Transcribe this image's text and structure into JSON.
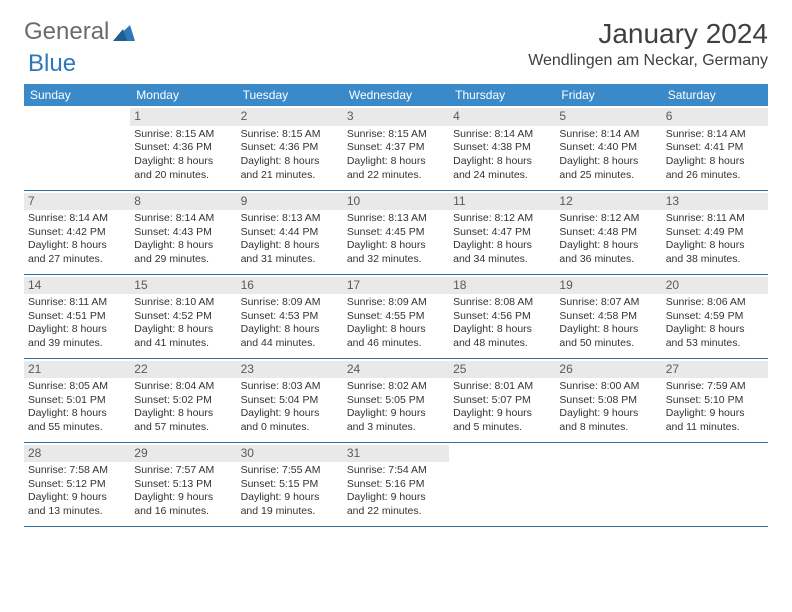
{
  "logo": {
    "word1": "General",
    "word2": "Blue"
  },
  "title": "January 2024",
  "location": "Wendlingen am Neckar, Germany",
  "colors": {
    "header_bg": "#3a89c9",
    "header_text": "#ffffff",
    "daynum_bg": "#e9e9e9",
    "rule": "#2f6fa3",
    "logo_grey": "#6b6b6b",
    "logo_blue": "#2f78b7"
  },
  "weekdays": [
    "Sunday",
    "Monday",
    "Tuesday",
    "Wednesday",
    "Thursday",
    "Friday",
    "Saturday"
  ],
  "weeks": [
    [
      {
        "n": "",
        "sunrise": "",
        "sunset": "",
        "daylight": ""
      },
      {
        "n": "1",
        "sunrise": "Sunrise: 8:15 AM",
        "sunset": "Sunset: 4:36 PM",
        "daylight": "Daylight: 8 hours and 20 minutes."
      },
      {
        "n": "2",
        "sunrise": "Sunrise: 8:15 AM",
        "sunset": "Sunset: 4:36 PM",
        "daylight": "Daylight: 8 hours and 21 minutes."
      },
      {
        "n": "3",
        "sunrise": "Sunrise: 8:15 AM",
        "sunset": "Sunset: 4:37 PM",
        "daylight": "Daylight: 8 hours and 22 minutes."
      },
      {
        "n": "4",
        "sunrise": "Sunrise: 8:14 AM",
        "sunset": "Sunset: 4:38 PM",
        "daylight": "Daylight: 8 hours and 24 minutes."
      },
      {
        "n": "5",
        "sunrise": "Sunrise: 8:14 AM",
        "sunset": "Sunset: 4:40 PM",
        "daylight": "Daylight: 8 hours and 25 minutes."
      },
      {
        "n": "6",
        "sunrise": "Sunrise: 8:14 AM",
        "sunset": "Sunset: 4:41 PM",
        "daylight": "Daylight: 8 hours and 26 minutes."
      }
    ],
    [
      {
        "n": "7",
        "sunrise": "Sunrise: 8:14 AM",
        "sunset": "Sunset: 4:42 PM",
        "daylight": "Daylight: 8 hours and 27 minutes."
      },
      {
        "n": "8",
        "sunrise": "Sunrise: 8:14 AM",
        "sunset": "Sunset: 4:43 PM",
        "daylight": "Daylight: 8 hours and 29 minutes."
      },
      {
        "n": "9",
        "sunrise": "Sunrise: 8:13 AM",
        "sunset": "Sunset: 4:44 PM",
        "daylight": "Daylight: 8 hours and 31 minutes."
      },
      {
        "n": "10",
        "sunrise": "Sunrise: 8:13 AM",
        "sunset": "Sunset: 4:45 PM",
        "daylight": "Daylight: 8 hours and 32 minutes."
      },
      {
        "n": "11",
        "sunrise": "Sunrise: 8:12 AM",
        "sunset": "Sunset: 4:47 PM",
        "daylight": "Daylight: 8 hours and 34 minutes."
      },
      {
        "n": "12",
        "sunrise": "Sunrise: 8:12 AM",
        "sunset": "Sunset: 4:48 PM",
        "daylight": "Daylight: 8 hours and 36 minutes."
      },
      {
        "n": "13",
        "sunrise": "Sunrise: 8:11 AM",
        "sunset": "Sunset: 4:49 PM",
        "daylight": "Daylight: 8 hours and 38 minutes."
      }
    ],
    [
      {
        "n": "14",
        "sunrise": "Sunrise: 8:11 AM",
        "sunset": "Sunset: 4:51 PM",
        "daylight": "Daylight: 8 hours and 39 minutes."
      },
      {
        "n": "15",
        "sunrise": "Sunrise: 8:10 AM",
        "sunset": "Sunset: 4:52 PM",
        "daylight": "Daylight: 8 hours and 41 minutes."
      },
      {
        "n": "16",
        "sunrise": "Sunrise: 8:09 AM",
        "sunset": "Sunset: 4:53 PM",
        "daylight": "Daylight: 8 hours and 44 minutes."
      },
      {
        "n": "17",
        "sunrise": "Sunrise: 8:09 AM",
        "sunset": "Sunset: 4:55 PM",
        "daylight": "Daylight: 8 hours and 46 minutes."
      },
      {
        "n": "18",
        "sunrise": "Sunrise: 8:08 AM",
        "sunset": "Sunset: 4:56 PM",
        "daylight": "Daylight: 8 hours and 48 minutes."
      },
      {
        "n": "19",
        "sunrise": "Sunrise: 8:07 AM",
        "sunset": "Sunset: 4:58 PM",
        "daylight": "Daylight: 8 hours and 50 minutes."
      },
      {
        "n": "20",
        "sunrise": "Sunrise: 8:06 AM",
        "sunset": "Sunset: 4:59 PM",
        "daylight": "Daylight: 8 hours and 53 minutes."
      }
    ],
    [
      {
        "n": "21",
        "sunrise": "Sunrise: 8:05 AM",
        "sunset": "Sunset: 5:01 PM",
        "daylight": "Daylight: 8 hours and 55 minutes."
      },
      {
        "n": "22",
        "sunrise": "Sunrise: 8:04 AM",
        "sunset": "Sunset: 5:02 PM",
        "daylight": "Daylight: 8 hours and 57 minutes."
      },
      {
        "n": "23",
        "sunrise": "Sunrise: 8:03 AM",
        "sunset": "Sunset: 5:04 PM",
        "daylight": "Daylight: 9 hours and 0 minutes."
      },
      {
        "n": "24",
        "sunrise": "Sunrise: 8:02 AM",
        "sunset": "Sunset: 5:05 PM",
        "daylight": "Daylight: 9 hours and 3 minutes."
      },
      {
        "n": "25",
        "sunrise": "Sunrise: 8:01 AM",
        "sunset": "Sunset: 5:07 PM",
        "daylight": "Daylight: 9 hours and 5 minutes."
      },
      {
        "n": "26",
        "sunrise": "Sunrise: 8:00 AM",
        "sunset": "Sunset: 5:08 PM",
        "daylight": "Daylight: 9 hours and 8 minutes."
      },
      {
        "n": "27",
        "sunrise": "Sunrise: 7:59 AM",
        "sunset": "Sunset: 5:10 PM",
        "daylight": "Daylight: 9 hours and 11 minutes."
      }
    ],
    [
      {
        "n": "28",
        "sunrise": "Sunrise: 7:58 AM",
        "sunset": "Sunset: 5:12 PM",
        "daylight": "Daylight: 9 hours and 13 minutes."
      },
      {
        "n": "29",
        "sunrise": "Sunrise: 7:57 AM",
        "sunset": "Sunset: 5:13 PM",
        "daylight": "Daylight: 9 hours and 16 minutes."
      },
      {
        "n": "30",
        "sunrise": "Sunrise: 7:55 AM",
        "sunset": "Sunset: 5:15 PM",
        "daylight": "Daylight: 9 hours and 19 minutes."
      },
      {
        "n": "31",
        "sunrise": "Sunrise: 7:54 AM",
        "sunset": "Sunset: 5:16 PM",
        "daylight": "Daylight: 9 hours and 22 minutes."
      },
      {
        "n": "",
        "sunrise": "",
        "sunset": "",
        "daylight": ""
      },
      {
        "n": "",
        "sunrise": "",
        "sunset": "",
        "daylight": ""
      },
      {
        "n": "",
        "sunrise": "",
        "sunset": "",
        "daylight": ""
      }
    ]
  ]
}
